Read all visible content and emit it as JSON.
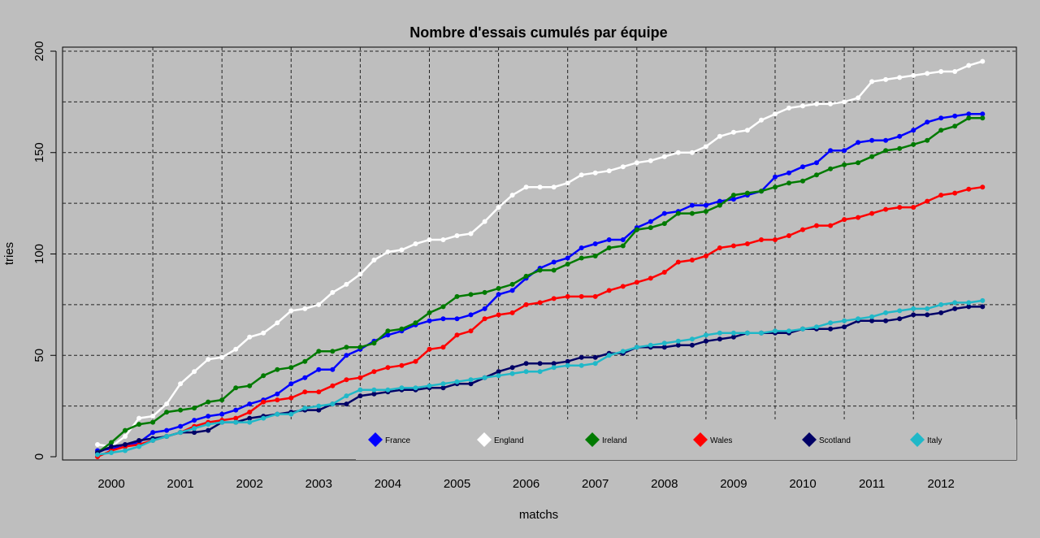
{
  "chart_data": {
    "type": "line",
    "title": "Nombre d'essais cumulés par équipe",
    "xlabel": "matchs",
    "ylabel": "tries",
    "x_ticks": [
      "2000",
      "2001",
      "2002",
      "2003",
      "2004",
      "2005",
      "2006",
      "2007",
      "2008",
      "2009",
      "2010",
      "2011",
      "2012"
    ],
    "y_ticks": [
      0,
      50,
      100,
      150,
      200
    ],
    "xlim": [
      0,
      65
    ],
    "ylim": [
      0,
      200
    ],
    "grid": true,
    "legend_position": "bottom",
    "series": [
      {
        "name": "France",
        "color": "#0000ff",
        "values": [
          3,
          4,
          5,
          7,
          12,
          13,
          15,
          18,
          20,
          21,
          23,
          26,
          28,
          31,
          36,
          39,
          43,
          43,
          50,
          53,
          57,
          60,
          62,
          65,
          67,
          68,
          68,
          70,
          73,
          80,
          82,
          88,
          93,
          96,
          98,
          103,
          105,
          107,
          107,
          113,
          116,
          120,
          121,
          124,
          124,
          126,
          127,
          129,
          131,
          138,
          140,
          143,
          145,
          151,
          151,
          155,
          156,
          156,
          158,
          161,
          165,
          167,
          168,
          169,
          169
        ]
      },
      {
        "name": "England",
        "color": "#ffffff",
        "values": [
          6,
          5,
          10,
          19,
          20,
          26,
          36,
          42,
          48,
          49,
          53,
          59,
          61,
          66,
          72,
          73,
          75,
          81,
          85,
          90,
          97,
          101,
          102,
          105,
          107,
          107,
          109,
          110,
          116,
          123,
          129,
          133,
          133,
          133,
          135,
          139,
          140,
          141,
          143,
          145,
          146,
          148,
          150,
          150,
          153,
          158,
          160,
          161,
          166,
          169,
          172,
          173,
          174,
          174,
          175,
          177,
          185,
          186,
          187,
          188,
          189,
          190,
          190,
          193,
          195
        ]
      },
      {
        "name": "Ireland",
        "color": "#007a00",
        "values": [
          2,
          7,
          13,
          16,
          17,
          22,
          23,
          24,
          27,
          28,
          34,
          35,
          40,
          43,
          44,
          47,
          52,
          52,
          54,
          54,
          56,
          62,
          63,
          66,
          71,
          74,
          79,
          80,
          81,
          83,
          85,
          89,
          92,
          92,
          95,
          98,
          99,
          103,
          104,
          112,
          113,
          115,
          120,
          120,
          121,
          124,
          129,
          130,
          131,
          133,
          135,
          136,
          139,
          142,
          144,
          145,
          148,
          151,
          152,
          154,
          156,
          161,
          163,
          167,
          167
        ]
      },
      {
        "name": "Wales",
        "color": "#ff0000",
        "values": [
          0,
          3,
          5,
          6,
          8,
          10,
          12,
          15,
          17,
          18,
          19,
          22,
          27,
          28,
          29,
          32,
          32,
          35,
          38,
          39,
          42,
          44,
          45,
          47,
          53,
          54,
          60,
          62,
          68,
          70,
          71,
          75,
          76,
          78,
          79,
          79,
          79,
          82,
          84,
          86,
          88,
          91,
          96,
          97,
          99,
          103,
          104,
          105,
          107,
          107,
          109,
          112,
          114,
          114,
          117,
          118,
          120,
          122,
          123,
          123,
          126,
          129,
          130,
          132,
          133
        ]
      },
      {
        "name": "Scotland",
        "color": "#000066",
        "values": [
          2,
          5,
          6,
          8,
          9,
          10,
          12,
          12,
          13,
          17,
          17,
          19,
          20,
          21,
          22,
          23,
          23,
          26,
          26,
          30,
          31,
          32,
          33,
          33,
          34,
          34,
          36,
          36,
          39,
          42,
          44,
          46,
          46,
          46,
          47,
          49,
          49,
          51,
          51,
          54,
          54,
          54,
          55,
          55,
          57,
          58,
          59,
          61,
          61,
          61,
          61,
          63,
          63,
          63,
          64,
          67,
          67,
          67,
          68,
          70,
          70,
          71,
          73,
          74,
          74
        ]
      },
      {
        "name": "Italy",
        "color": "#20b8c8",
        "values": [
          1,
          2,
          3,
          5,
          8,
          10,
          12,
          14,
          16,
          17,
          17,
          17,
          19,
          21,
          21,
          24,
          25,
          26,
          30,
          33,
          33,
          33,
          34,
          34,
          35,
          36,
          37,
          38,
          39,
          40,
          41,
          42,
          42,
          44,
          45,
          45,
          46,
          50,
          52,
          54,
          55,
          56,
          57,
          58,
          60,
          61,
          61,
          61,
          61,
          62,
          62,
          63,
          64,
          66,
          67,
          68,
          69,
          71,
          72,
          73,
          73,
          75,
          76,
          76,
          77
        ]
      }
    ]
  }
}
